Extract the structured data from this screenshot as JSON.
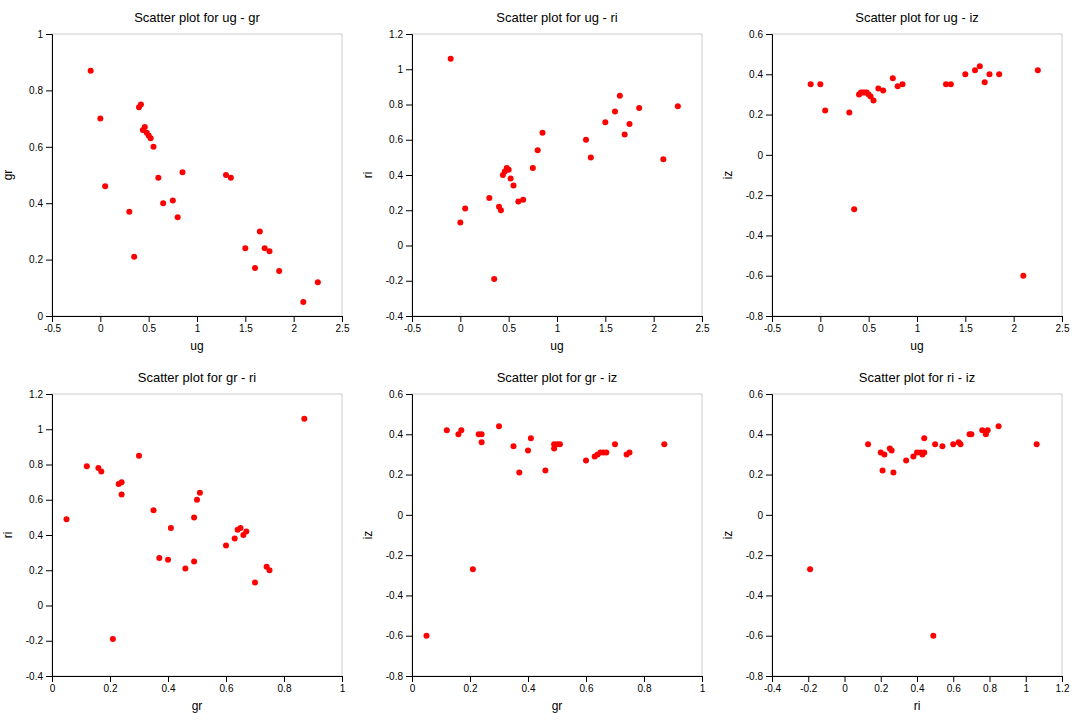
{
  "chart_data": [
    {
      "type": "scatter",
      "title": "Scatter plot for ug - gr",
      "x_label": "ug",
      "y_label": "gr",
      "x": [
        -0.1,
        0.0,
        0.05,
        0.3,
        0.35,
        0.4,
        0.42,
        0.44,
        0.46,
        0.48,
        0.5,
        0.52,
        0.55,
        0.6,
        0.65,
        0.75,
        0.8,
        0.85,
        1.3,
        1.35,
        1.5,
        1.6,
        1.65,
        1.7,
        1.75,
        1.85,
        2.1,
        2.25
      ],
      "values": [
        0.87,
        0.7,
        0.46,
        0.37,
        0.21,
        0.74,
        0.75,
        0.66,
        0.67,
        0.65,
        0.64,
        0.63,
        0.6,
        0.49,
        0.4,
        0.41,
        0.35,
        0.51,
        0.5,
        0.49,
        0.24,
        0.17,
        0.3,
        0.24,
        0.23,
        0.16,
        0.05,
        0.12
      ],
      "color": "red",
      "grid": false,
      "xlim": [
        -0.5,
        2.5
      ],
      "xticks": [
        -0.5,
        0,
        0.5,
        1,
        1.5,
        2,
        2.5
      ],
      "ylim": [
        0,
        1
      ],
      "yticks": [
        0,
        0.2,
        0.4,
        0.6,
        0.8,
        1
      ]
    },
    {
      "type": "scatter",
      "title": "Scatter plot for ug - ri",
      "x_label": "ug",
      "y_label": "ri",
      "x": [
        -0.1,
        0.0,
        0.05,
        0.3,
        0.35,
        0.4,
        0.42,
        0.44,
        0.46,
        0.48,
        0.5,
        0.52,
        0.55,
        0.6,
        0.65,
        0.75,
        0.8,
        0.85,
        1.3,
        1.35,
        1.5,
        1.6,
        1.65,
        1.7,
        1.75,
        1.85,
        2.1,
        2.25
      ],
      "values": [
        1.06,
        0.13,
        0.21,
        0.27,
        -0.19,
        0.22,
        0.2,
        0.4,
        0.42,
        0.44,
        0.43,
        0.38,
        0.34,
        0.25,
        0.26,
        0.44,
        0.54,
        0.64,
        0.6,
        0.5,
        0.7,
        0.76,
        0.85,
        0.63,
        0.69,
        0.78,
        0.49,
        0.79
      ],
      "color": "red",
      "grid": false,
      "xlim": [
        -0.5,
        2.5
      ],
      "xticks": [
        -0.5,
        0,
        0.5,
        1,
        1.5,
        2,
        2.5
      ],
      "ylim": [
        -0.4,
        1.2
      ],
      "yticks": [
        -0.4,
        -0.2,
        0,
        0.2,
        0.4,
        0.6,
        0.8,
        1,
        1.2
      ]
    },
    {
      "type": "scatter",
      "title": "Scatter plot for ug - iz",
      "x_label": "ug",
      "y_label": "iz",
      "x": [
        -0.1,
        0.0,
        0.05,
        0.3,
        0.35,
        0.4,
        0.42,
        0.44,
        0.46,
        0.48,
        0.5,
        0.52,
        0.55,
        0.6,
        0.65,
        0.75,
        0.8,
        0.85,
        1.3,
        1.35,
        1.5,
        1.6,
        1.65,
        1.7,
        1.75,
        1.85,
        2.1,
        2.25
      ],
      "values": [
        0.35,
        0.35,
        0.22,
        0.21,
        -0.27,
        0.3,
        0.31,
        0.31,
        0.31,
        0.31,
        0.3,
        0.29,
        0.27,
        0.33,
        0.32,
        0.38,
        0.34,
        0.35,
        0.35,
        0.35,
        0.4,
        0.42,
        0.44,
        0.36,
        0.4,
        0.4,
        -0.6,
        0.42
      ],
      "color": "red",
      "grid": false,
      "xlim": [
        -0.5,
        2.5
      ],
      "xticks": [
        -0.5,
        0,
        0.5,
        1,
        1.5,
        2,
        2.5
      ],
      "ylim": [
        -0.8,
        0.6
      ],
      "yticks": [
        -0.8,
        -0.6,
        -0.4,
        -0.2,
        0,
        0.2,
        0.4,
        0.6
      ]
    },
    {
      "type": "scatter",
      "title": "Scatter plot for gr - ri",
      "x_label": "gr",
      "y_label": "ri",
      "x": [
        0.87,
        0.7,
        0.46,
        0.37,
        0.21,
        0.74,
        0.75,
        0.66,
        0.67,
        0.65,
        0.64,
        0.63,
        0.6,
        0.49,
        0.4,
        0.41,
        0.35,
        0.51,
        0.5,
        0.49,
        0.24,
        0.17,
        0.3,
        0.24,
        0.23,
        0.16,
        0.05,
        0.12
      ],
      "values": [
        1.06,
        0.13,
        0.21,
        0.27,
        -0.19,
        0.22,
        0.2,
        0.4,
        0.42,
        0.44,
        0.43,
        0.38,
        0.34,
        0.25,
        0.26,
        0.44,
        0.54,
        0.64,
        0.6,
        0.5,
        0.7,
        0.76,
        0.85,
        0.63,
        0.69,
        0.78,
        0.49,
        0.79
      ],
      "color": "red",
      "grid": false,
      "xlim": [
        0,
        1
      ],
      "xticks": [
        0,
        0.2,
        0.4,
        0.6,
        0.8,
        1
      ],
      "ylim": [
        -0.4,
        1.2
      ],
      "yticks": [
        -0.4,
        -0.2,
        0,
        0.2,
        0.4,
        0.6,
        0.8,
        1,
        1.2
      ]
    },
    {
      "type": "scatter",
      "title": "Scatter plot for gr - iz",
      "x_label": "gr",
      "y_label": "iz",
      "x": [
        0.87,
        0.7,
        0.46,
        0.37,
        0.21,
        0.74,
        0.75,
        0.66,
        0.67,
        0.65,
        0.64,
        0.63,
        0.6,
        0.49,
        0.4,
        0.41,
        0.35,
        0.51,
        0.5,
        0.49,
        0.24,
        0.17,
        0.3,
        0.24,
        0.23,
        0.16,
        0.05,
        0.12
      ],
      "values": [
        0.35,
        0.35,
        0.22,
        0.21,
        -0.27,
        0.3,
        0.31,
        0.31,
        0.31,
        0.31,
        0.3,
        0.29,
        0.27,
        0.33,
        0.32,
        0.38,
        0.34,
        0.35,
        0.35,
        0.35,
        0.4,
        0.42,
        0.44,
        0.36,
        0.4,
        0.4,
        -0.6,
        0.42
      ],
      "color": "red",
      "grid": false,
      "xlim": [
        0,
        1
      ],
      "xticks": [
        0,
        0.2,
        0.4,
        0.6,
        0.8,
        1
      ],
      "ylim": [
        -0.8,
        0.6
      ],
      "yticks": [
        -0.8,
        -0.6,
        -0.4,
        -0.2,
        0,
        0.2,
        0.4,
        0.6
      ]
    },
    {
      "type": "scatter",
      "title": "Scatter plot for ri - iz",
      "x_label": "ri",
      "y_label": "iz",
      "x": [
        1.06,
        0.13,
        0.21,
        0.27,
        -0.19,
        0.22,
        0.2,
        0.4,
        0.42,
        0.44,
        0.43,
        0.38,
        0.34,
        0.25,
        0.26,
        0.44,
        0.54,
        0.64,
        0.6,
        0.5,
        0.7,
        0.76,
        0.85,
        0.63,
        0.69,
        0.78,
        0.49,
        0.79
      ],
      "values": [
        0.35,
        0.35,
        0.22,
        0.21,
        -0.27,
        0.3,
        0.31,
        0.31,
        0.31,
        0.31,
        0.3,
        0.29,
        0.27,
        0.33,
        0.32,
        0.38,
        0.34,
        0.35,
        0.35,
        0.35,
        0.4,
        0.42,
        0.44,
        0.36,
        0.4,
        0.4,
        -0.6,
        0.42
      ],
      "color": "red",
      "grid": false,
      "xlim": [
        -0.4,
        1.2
      ],
      "xticks": [
        -0.4,
        -0.2,
        0,
        0.2,
        0.4,
        0.6,
        0.8,
        1,
        1.2
      ],
      "ylim": [
        -0.8,
        0.6
      ],
      "yticks": [
        -0.8,
        -0.6,
        -0.4,
        -0.2,
        0,
        0.2,
        0.4,
        0.6
      ]
    }
  ]
}
